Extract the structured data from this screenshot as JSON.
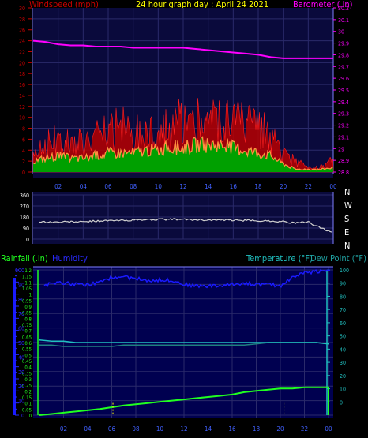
{
  "header": {
    "windspeed_label": "Windspeed (mph)",
    "title": "24 hour graph day : April 24 2021",
    "barometer_label": "Barometer (.in)"
  },
  "wind_dir_compass": [
    "N",
    "W",
    "S",
    "E",
    "N"
  ],
  "bottom_header": {
    "rainfall_label": "Rainfall (.in)",
    "humidity_label": "Humidity",
    "temperature_label": "Temperature (°F)",
    "dewpoint_label": "Dew Point (°F)"
  },
  "colors": {
    "background": "#000000",
    "panel_top": "#0a0a3c",
    "panel_bottom": "#000050",
    "grid": "#2a2a6a",
    "wind_gust": "#b80000",
    "wind_avg_fill": "#00a000",
    "wind_avg_line": "#ff9040",
    "barometer": "#ff00ff",
    "direction": "#d0d0d0",
    "humidity": "#1a1aff",
    "temperature": "#20c0c0",
    "dewpoint": "#208080",
    "rain": "#20ff20",
    "rain_marker": "#ffff00",
    "windspeed_axis": "#cc0000"
  },
  "chart_data": [
    {
      "type": "line",
      "name": "wind-barometer",
      "x_ticks": [
        "02",
        "04",
        "06",
        "08",
        "10",
        "12",
        "14",
        "16",
        "18",
        "20",
        "22",
        "00"
      ],
      "windspeed_axis": {
        "label": "Windspeed (mph)",
        "ylim": [
          0,
          30
        ],
        "ticks": [
          0,
          2,
          4,
          6,
          8,
          10,
          12,
          14,
          16,
          18,
          20,
          22,
          24,
          26,
          28,
          30
        ]
      },
      "barometer_axis": {
        "label": "Barometer (.in)",
        "ylim": [
          28.8,
          30.2
        ],
        "ticks": [
          28.8,
          28.9,
          29,
          29.1,
          29.2,
          29.3,
          29.4,
          29.5,
          29.6,
          29.7,
          29.8,
          29.9,
          30,
          30.1,
          30.2
        ]
      },
      "x_hours": [
        0,
        1,
        2,
        3,
        4,
        5,
        6,
        7,
        8,
        9,
        10,
        11,
        12,
        13,
        14,
        15,
        16,
        17,
        18,
        19,
        20,
        21,
        22,
        23,
        24
      ],
      "series": [
        {
          "name": "Windspeed (mph)",
          "values": [
            4,
            5,
            6,
            5,
            6,
            6,
            7,
            8,
            7,
            8,
            8,
            8,
            9,
            9,
            9,
            9,
            9,
            8,
            8,
            6,
            3,
            2,
            1,
            1,
            2
          ]
        },
        {
          "name": "Windspeed (mph)",
          "values": [
            2,
            2.5,
            3,
            2.5,
            2.5,
            3,
            3.5,
            3.5,
            3.5,
            4,
            4,
            4.5,
            4.5,
            5,
            5,
            5,
            4.5,
            4,
            3.5,
            3,
            1.5,
            0.5,
            0.5,
            0.5,
            0.8
          ]
        },
        {
          "name": "Barometer (.in)",
          "values": [
            29.92,
            29.91,
            29.89,
            29.88,
            29.88,
            29.87,
            29.87,
            29.87,
            29.86,
            29.86,
            29.86,
            29.86,
            29.86,
            29.85,
            29.84,
            29.83,
            29.82,
            29.81,
            29.8,
            29.78,
            29.77,
            29.77,
            29.77,
            29.77,
            29.77
          ]
        }
      ]
    },
    {
      "type": "line",
      "name": "wind-direction",
      "x_hours": [
        0,
        1,
        2,
        3,
        4,
        5,
        6,
        7,
        8,
        9,
        10,
        11,
        12,
        13,
        14,
        15,
        16,
        17,
        18,
        19,
        20,
        21,
        22,
        23,
        24
      ],
      "ylim": [
        0,
        360
      ],
      "y_ticks": [
        0,
        90,
        180,
        270,
        360
      ],
      "y_tick_labels": [
        "0",
        "90",
        "180",
        "270",
        "360"
      ],
      "series": [
        {
          "name": "Wind direction",
          "values": [
            145,
            140,
            138,
            142,
            140,
            148,
            150,
            152,
            155,
            158,
            160,
            162,
            160,
            158,
            156,
            155,
            154,
            152,
            150,
            148,
            142,
            130,
            140,
            90,
            55
          ]
        }
      ]
    },
    {
      "type": "line",
      "name": "rain-humidity-temperature",
      "x_ticks": [
        "02",
        "04",
        "06",
        "08",
        "10",
        "12",
        "14",
        "16",
        "18",
        "20",
        "22",
        "00"
      ],
      "rainfall_axis": {
        "label": "Rainfall (.in)",
        "ylim": [
          0,
          1.2
        ],
        "ticks": [
          0,
          0.05,
          0.1,
          0.15,
          0.2,
          0.25,
          0.3,
          0.35,
          0.4,
          0.45,
          0.5,
          0.55,
          0.6,
          0.65,
          0.7,
          0.75,
          0.8,
          0.85,
          0.9,
          0.95,
          1,
          1.05,
          1.1,
          1.15,
          1.2
        ]
      },
      "humidity_axis": {
        "label": "Humidity",
        "ylim": [
          0,
          100
        ],
        "ticks": [
          0,
          10,
          20,
          30,
          40,
          50,
          60,
          70,
          80,
          90,
          100
        ]
      },
      "temperature_axis": {
        "label": "Temperature (°F)",
        "ylim": [
          -10,
          100
        ],
        "ticks": [
          0,
          10,
          20,
          30,
          40,
          50,
          60,
          70,
          80,
          90,
          100
        ]
      },
      "x_hours": [
        0,
        1,
        2,
        3,
        4,
        5,
        6,
        7,
        8,
        9,
        10,
        11,
        12,
        13,
        14,
        15,
        16,
        17,
        18,
        19,
        20,
        21,
        22,
        23,
        24
      ],
      "series": [
        {
          "name": "Humidity",
          "values": [
            88,
            91,
            91,
            90,
            90,
            91,
            95,
            95,
            94,
            93,
            93,
            93,
            90,
            89,
            89,
            89,
            90,
            91,
            90,
            90,
            89,
            95,
            98,
            99,
            100
          ]
        },
        {
          "name": "Temperature (°F)",
          "values": [
            47,
            46,
            46,
            45,
            45,
            45,
            45,
            45,
            45,
            45,
            45,
            45,
            45,
            45,
            45,
            45,
            45,
            45,
            45,
            45,
            45,
            45,
            45,
            45,
            44
          ]
        },
        {
          "name": "Dew Point (°F)",
          "values": [
            43,
            43,
            42,
            42,
            42,
            42,
            42,
            43,
            43,
            43,
            43,
            43,
            43,
            43,
            43,
            43,
            43,
            43,
            44,
            45,
            45,
            45,
            45,
            45,
            44
          ]
        },
        {
          "name": "Rainfall (.in)",
          "values": [
            0,
            0.01,
            0.02,
            0.03,
            0.04,
            0.05,
            0.065,
            0.08,
            0.09,
            0.1,
            0.11,
            0.12,
            0.13,
            0.14,
            0.15,
            0.16,
            0.17,
            0.19,
            0.2,
            0.21,
            0.22,
            0.22,
            0.23,
            0.23,
            0.23
          ]
        }
      ],
      "rain_markers_hours": [
        6.1,
        20.3
      ]
    }
  ]
}
